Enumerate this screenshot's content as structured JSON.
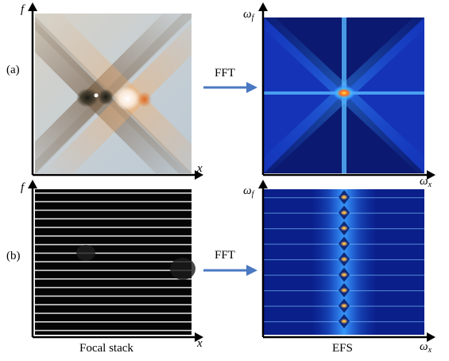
{
  "rows": [
    {
      "label": "(a)"
    },
    {
      "label": "(b)"
    }
  ],
  "axes": {
    "spatial_x": "x",
    "spatial_y": "f",
    "freq_x": "ω",
    "freq_x_sub": "x",
    "freq_y": "ω",
    "freq_y_sub": "f"
  },
  "operation": {
    "label": "FFT"
  },
  "captions": {
    "left": "Focal stack",
    "right": "EFS"
  },
  "colors": {
    "arrow": "#4a78c2",
    "spectrum_bg": "#0a1f8a",
    "spectrum_bright": "#3aa0ff"
  }
}
